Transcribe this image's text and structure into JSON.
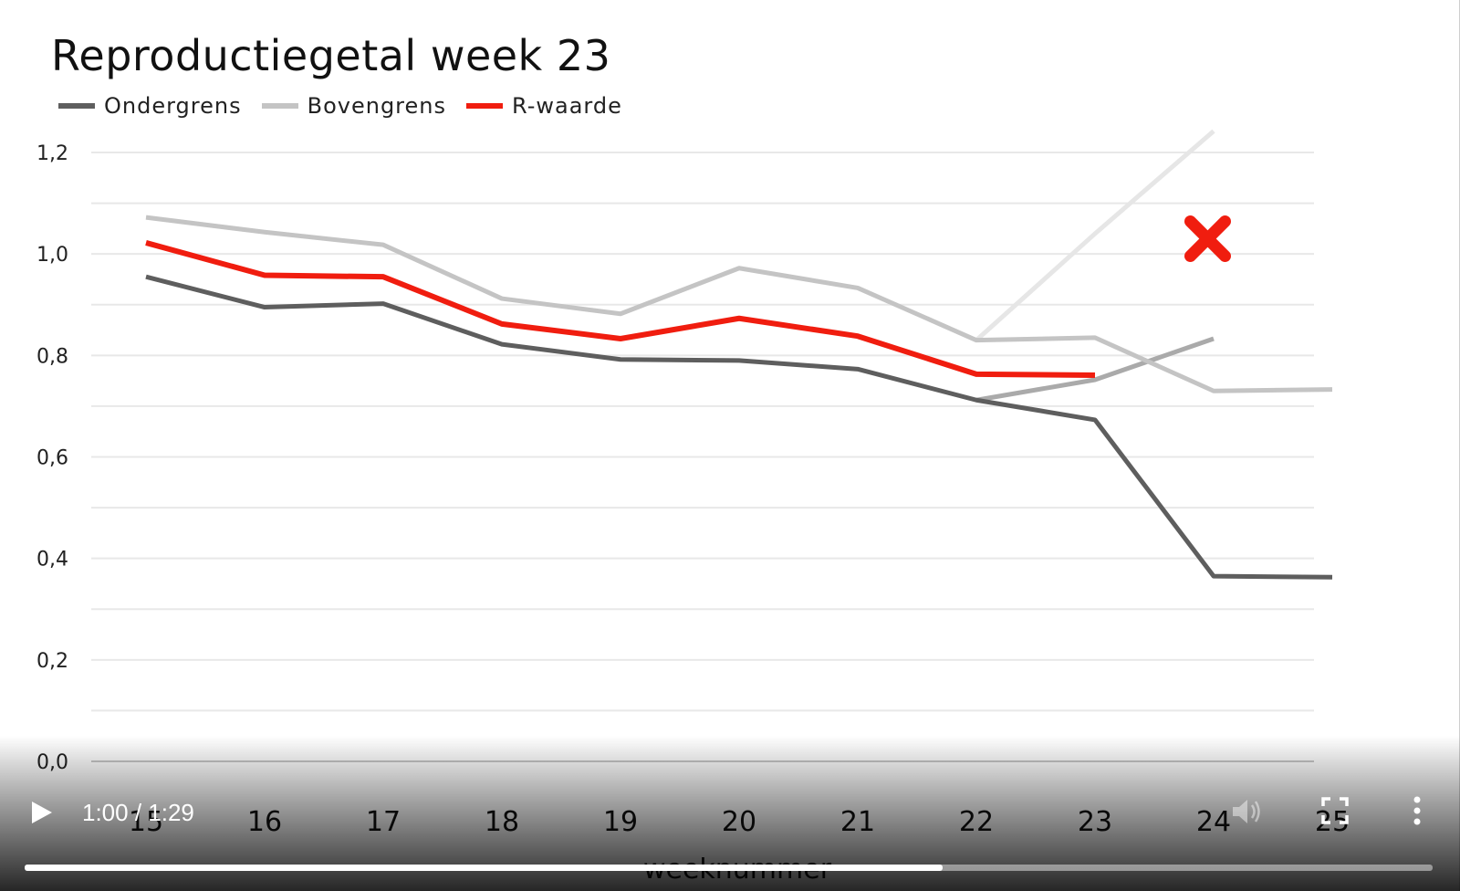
{
  "chart_data": {
    "type": "line",
    "title": "Reproductiegetal  week 23",
    "xlabel": "weeknummer",
    "ylabel": "",
    "x": [
      15,
      16,
      17,
      18,
      19,
      20,
      21,
      22,
      23,
      24,
      25
    ],
    "ylim": [
      0,
      1.2
    ],
    "yticks": [
      "0,0",
      "0,2",
      "0,4",
      "0,6",
      "0,8",
      "1,0",
      "1,2"
    ],
    "grid": true,
    "legend_position": "top-left",
    "series": [
      {
        "name": "Ondergrens",
        "color": "#5e5e5e",
        "values": [
          0.955,
          0.895,
          0.902,
          0.822,
          0.792,
          0.79,
          0.773,
          0.712,
          0.673,
          0.365,
          0.363
        ]
      },
      {
        "name": "Bovengrens",
        "color": "#c4c4c4",
        "values": [
          1.072,
          1.043,
          1.018,
          0.912,
          0.882,
          0.972,
          0.933,
          0.83,
          0.835,
          0.73,
          0.733
        ]
      },
      {
        "name": "R-waarde",
        "color": "#f01d0f",
        "values": [
          1.022,
          0.958,
          0.955,
          0.862,
          0.833,
          0.873,
          0.838,
          0.763,
          0.761,
          null,
          null
        ]
      }
    ],
    "overlay_lines": [
      {
        "color": "#e6e6e6",
        "x": [
          22,
          23,
          24
        ],
        "values": [
          0.83,
          1.04,
          1.242
        ]
      },
      {
        "color": "#aaaaaa",
        "x": [
          22,
          23,
          24
        ],
        "values": [
          0.712,
          0.752,
          0.833
        ]
      }
    ],
    "annotations": [
      {
        "type": "cross-marker",
        "color": "#f01d0f",
        "x": 23.95,
        "y": 1.03
      }
    ]
  },
  "video_player": {
    "time": "1:00 / 1:29",
    "progress_fraction": 0.652
  }
}
